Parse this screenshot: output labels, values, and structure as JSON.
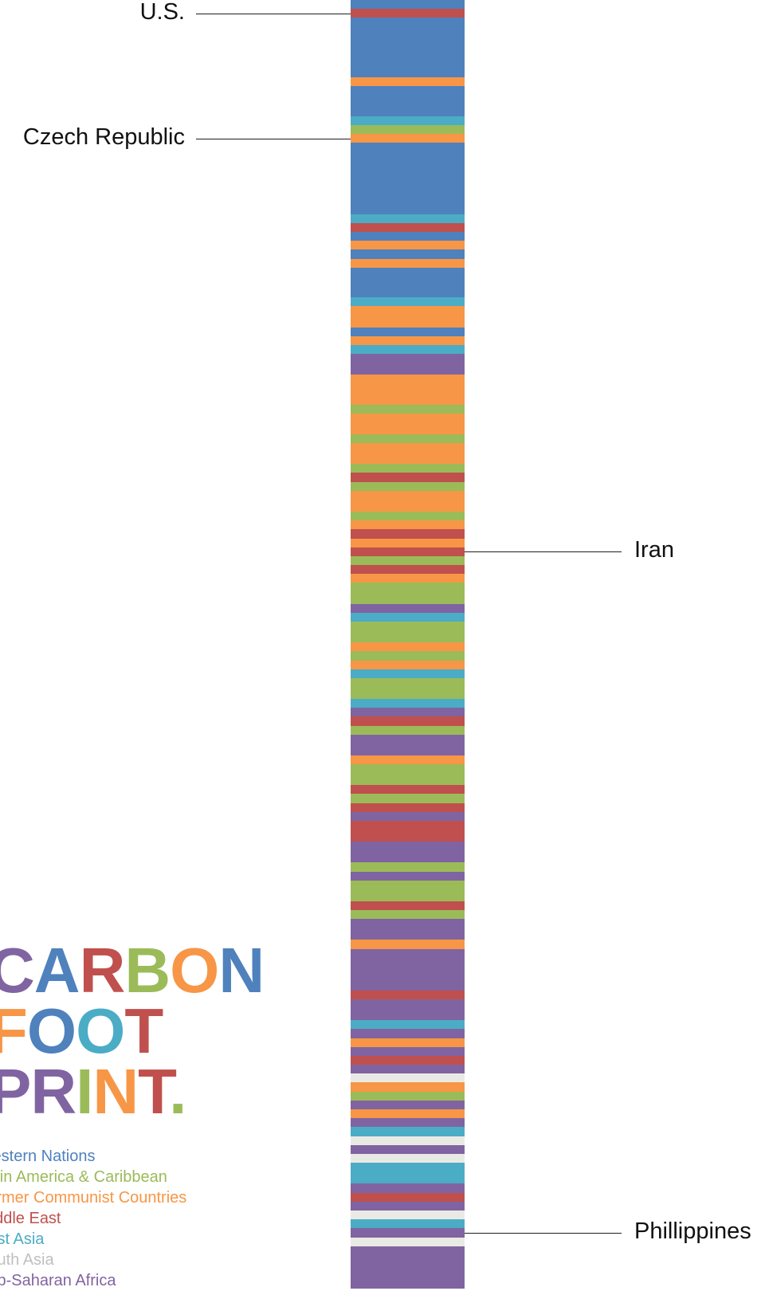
{
  "chart_data": {
    "type": "bar",
    "title": "CARBON FOOT PRINT.",
    "title_lines": [
      [
        {
          "t": "C",
          "color": "#8064a2"
        },
        {
          "t": "A",
          "color": "#4f81bd"
        },
        {
          "t": "R",
          "color": "#c0504d"
        },
        {
          "t": "B",
          "color": "#9bbb59"
        },
        {
          "t": "O",
          "color": "#f79646"
        },
        {
          "t": "N",
          "color": "#4f81bd"
        }
      ],
      [
        {
          "t": "F",
          "color": "#f79646"
        },
        {
          "t": "O",
          "color": "#4f81bd"
        },
        {
          "t": "O",
          "color": "#4bacc6"
        },
        {
          "t": "T",
          "color": "#c0504d"
        }
      ],
      [
        {
          "t": "P",
          "color": "#8064a2"
        },
        {
          "t": "R",
          "color": "#8064a2"
        },
        {
          "t": "I",
          "color": "#9bbb59"
        },
        {
          "t": "N",
          "color": "#f79646"
        },
        {
          "t": "T",
          "color": "#c0504d"
        },
        {
          "t": ".",
          "color": "#9bbb59"
        }
      ]
    ],
    "legend": [
      {
        "label": "Western Nations",
        "color": "#4f81bd",
        "visible_text": "stern Nations"
      },
      {
        "label": "Latin America & Caribbean",
        "color": "#9bbb59",
        "visible_text": "in America & Caribbean"
      },
      {
        "label": "Former Communist Countries",
        "color": "#f79646",
        "visible_text": "mer Communist Countries"
      },
      {
        "label": "Middle East",
        "color": "#c0504d",
        "visible_text": "ddle East"
      },
      {
        "label": "East Asia",
        "color": "#4bacc6",
        "visible_text": "t Asia"
      },
      {
        "label": "South Asia",
        "color": "#bfbfbf",
        "visible_text": "uth Asia"
      },
      {
        "label": "Sub-Saharan Africa",
        "color": "#8064a2",
        "visible_text": "b-Saharan Africa"
      }
    ],
    "stripes": [
      {
        "color": "#4f81bd",
        "units": 3
      },
      {
        "color": "#c0504d",
        "units": 3
      },
      {
        "color": "#4f81bd",
        "units": 20
      },
      {
        "color": "#f79646",
        "units": 3
      },
      {
        "color": "#4f81bd",
        "units": 10
      },
      {
        "color": "#4bacc6",
        "units": 3
      },
      {
        "color": "#9bbb59",
        "units": 3
      },
      {
        "color": "#f79646",
        "units": 3
      },
      {
        "color": "#4f81bd",
        "units": 24
      },
      {
        "color": "#4bacc6",
        "units": 3
      },
      {
        "color": "#c0504d",
        "units": 3
      },
      {
        "color": "#4f81bd",
        "units": 3
      },
      {
        "color": "#f79646",
        "units": 3
      },
      {
        "color": "#4f81bd",
        "units": 3
      },
      {
        "color": "#f79646",
        "units": 3
      },
      {
        "color": "#4f81bd",
        "units": 10
      },
      {
        "color": "#4bacc6",
        "units": 3
      },
      {
        "color": "#f79646",
        "units": 7
      },
      {
        "color": "#4f81bd",
        "units": 3
      },
      {
        "color": "#f79646",
        "units": 3
      },
      {
        "color": "#4bacc6",
        "units": 3
      },
      {
        "color": "#8064a2",
        "units": 7
      },
      {
        "color": "#f79646",
        "units": 10
      },
      {
        "color": "#9bbb59",
        "units": 3
      },
      {
        "color": "#f79646",
        "units": 7
      },
      {
        "color": "#9bbb59",
        "units": 3
      },
      {
        "color": "#f79646",
        "units": 7
      },
      {
        "color": "#9bbb59",
        "units": 3
      },
      {
        "color": "#c0504d",
        "units": 3
      },
      {
        "color": "#9bbb59",
        "units": 3
      },
      {
        "color": "#f79646",
        "units": 7
      },
      {
        "color": "#9bbb59",
        "units": 3
      },
      {
        "color": "#f79646",
        "units": 3
      },
      {
        "color": "#c0504d",
        "units": 3
      },
      {
        "color": "#f79646",
        "units": 3
      },
      {
        "color": "#c0504d",
        "units": 3
      },
      {
        "color": "#9bbb59",
        "units": 3
      },
      {
        "color": "#c0504d",
        "units": 3
      },
      {
        "color": "#f79646",
        "units": 3
      },
      {
        "color": "#9bbb59",
        "units": 7
      },
      {
        "color": "#8064a2",
        "units": 3
      },
      {
        "color": "#4bacc6",
        "units": 3
      },
      {
        "color": "#9bbb59",
        "units": 7
      },
      {
        "color": "#f79646",
        "units": 3
      },
      {
        "color": "#9bbb59",
        "units": 3
      },
      {
        "color": "#f79646",
        "units": 3
      },
      {
        "color": "#4bacc6",
        "units": 3
      },
      {
        "color": "#9bbb59",
        "units": 7
      },
      {
        "color": "#4bacc6",
        "units": 3
      },
      {
        "color": "#8064a2",
        "units": 3
      },
      {
        "color": "#c0504d",
        "units": 3
      },
      {
        "color": "#9bbb59",
        "units": 3
      },
      {
        "color": "#8064a2",
        "units": 7
      },
      {
        "color": "#f79646",
        "units": 3
      },
      {
        "color": "#9bbb59",
        "units": 7
      },
      {
        "color": "#c0504d",
        "units": 3
      },
      {
        "color": "#9bbb59",
        "units": 3
      },
      {
        "color": "#c0504d",
        "units": 3
      },
      {
        "color": "#8064a2",
        "units": 3
      },
      {
        "color": "#c0504d",
        "units": 7
      },
      {
        "color": "#8064a2",
        "units": 7
      },
      {
        "color": "#9bbb59",
        "units": 3
      },
      {
        "color": "#8064a2",
        "units": 3
      },
      {
        "color": "#9bbb59",
        "units": 7
      },
      {
        "color": "#c0504d",
        "units": 3
      },
      {
        "color": "#9bbb59",
        "units": 3
      },
      {
        "color": "#8064a2",
        "units": 7
      },
      {
        "color": "#f79646",
        "units": 3
      },
      {
        "color": "#8064a2",
        "units": 14
      },
      {
        "color": "#c0504d",
        "units": 3
      },
      {
        "color": "#8064a2",
        "units": 7
      },
      {
        "color": "#4bacc6",
        "units": 3
      },
      {
        "color": "#8064a2",
        "units": 3
      },
      {
        "color": "#f79646",
        "units": 3
      },
      {
        "color": "#8064a2",
        "units": 3
      },
      {
        "color": "#c0504d",
        "units": 3
      },
      {
        "color": "#8064a2",
        "units": 3
      },
      {
        "color": "#eaeae4",
        "units": 3
      },
      {
        "color": "#f79646",
        "units": 3
      },
      {
        "color": "#9bbb59",
        "units": 3
      },
      {
        "color": "#8064a2",
        "units": 3
      },
      {
        "color": "#f79646",
        "units": 3
      },
      {
        "color": "#8064a2",
        "units": 3
      },
      {
        "color": "#4bacc6",
        "units": 3
      },
      {
        "color": "#eaeae4",
        "units": 3
      },
      {
        "color": "#8064a2",
        "units": 3
      },
      {
        "color": "#eaeae4",
        "units": 3
      },
      {
        "color": "#4bacc6",
        "units": 7
      },
      {
        "color": "#8064a2",
        "units": 3
      },
      {
        "color": "#c0504d",
        "units": 3
      },
      {
        "color": "#8064a2",
        "units": 3
      },
      {
        "color": "#eaeae4",
        "units": 3
      },
      {
        "color": "#4bacc6",
        "units": 3
      },
      {
        "color": "#8064a2",
        "units": 3
      },
      {
        "color": "#eaeae4",
        "units": 3
      },
      {
        "color": "#8064a2",
        "units": 14
      }
    ],
    "annotations": [
      {
        "label": "U.S.",
        "stripe_index": 1,
        "side": "left"
      },
      {
        "label": "Czech Republic",
        "stripe_index": 7,
        "side": "left"
      },
      {
        "label": "Iran",
        "stripe_index": 35,
        "side": "right"
      },
      {
        "label": "Phillippines",
        "stripe_index": 93,
        "side": "right"
      }
    ]
  }
}
